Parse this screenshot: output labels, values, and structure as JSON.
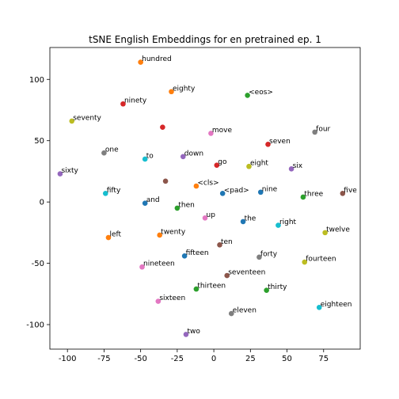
{
  "chart_data": {
    "type": "scatter",
    "title": "tSNE English Embeddings for en pretrained ep. 1",
    "xlabel": "",
    "ylabel": "",
    "xlim": [
      -112,
      100
    ],
    "ylim": [
      -120,
      126
    ],
    "xticks": [
      -100,
      -75,
      -50,
      -25,
      0,
      25,
      50,
      75
    ],
    "yticks": [
      -100,
      -50,
      0,
      50,
      100
    ],
    "grid": false,
    "points": [
      {
        "x": -50,
        "y": 114,
        "label": "hundred",
        "color": "#ff7f0e"
      },
      {
        "x": -29,
        "y": 90,
        "label": "eighty",
        "color": "#ff7f0e"
      },
      {
        "x": -62,
        "y": 80,
        "label": "ninety",
        "color": "#d62728"
      },
      {
        "x": 23,
        "y": 87,
        "label": "<eos>",
        "color": "#2ca02c"
      },
      {
        "x": -97,
        "y": 66,
        "label": "seventy",
        "color": "#bcbd22"
      },
      {
        "x": -35,
        "y": 61,
        "label": "",
        "color": "#d62728"
      },
      {
        "x": -2,
        "y": 56,
        "label": "move",
        "color": "#e377c2"
      },
      {
        "x": 69,
        "y": 57,
        "label": "four",
        "color": "#7f7f7f"
      },
      {
        "x": 37,
        "y": 47,
        "label": "seven",
        "color": "#d62728"
      },
      {
        "x": -75,
        "y": 40,
        "label": "one",
        "color": "#7f7f7f"
      },
      {
        "x": -47,
        "y": 35,
        "label": "to",
        "color": "#17becf"
      },
      {
        "x": -21,
        "y": 37,
        "label": "down",
        "color": "#9467bd"
      },
      {
        "x": 2,
        "y": 30,
        "label": "go",
        "color": "#d62728"
      },
      {
        "x": 24,
        "y": 29,
        "label": "eight",
        "color": "#bcbd22"
      },
      {
        "x": 53,
        "y": 27,
        "label": "six",
        "color": "#9467bd"
      },
      {
        "x": -105,
        "y": 23,
        "label": "sixty",
        "color": "#9467bd"
      },
      {
        "x": -33,
        "y": 17,
        "label": "",
        "color": "#8c564b"
      },
      {
        "x": -12,
        "y": 13,
        "label": "<cls>",
        "color": "#ff7f0e"
      },
      {
        "x": -74,
        "y": 7,
        "label": "fifty",
        "color": "#17becf"
      },
      {
        "x": 6,
        "y": 7,
        "label": "<pad>",
        "color": "#1f77b4"
      },
      {
        "x": 32,
        "y": 8,
        "label": "nine",
        "color": "#1f77b4"
      },
      {
        "x": 61,
        "y": 4,
        "label": "three",
        "color": "#2ca02c"
      },
      {
        "x": 88,
        "y": 7,
        "label": "five",
        "color": "#8c564b"
      },
      {
        "x": -47,
        "y": -1,
        "label": "and",
        "color": "#1f77b4"
      },
      {
        "x": -25,
        "y": -5,
        "label": "then",
        "color": "#2ca02c"
      },
      {
        "x": -6,
        "y": -13,
        "label": "up",
        "color": "#e377c2"
      },
      {
        "x": 20,
        "y": -16,
        "label": "the",
        "color": "#1f77b4"
      },
      {
        "x": 44,
        "y": -19,
        "label": "right",
        "color": "#17becf"
      },
      {
        "x": 76,
        "y": -25,
        "label": "twelve",
        "color": "#bcbd22"
      },
      {
        "x": -72,
        "y": -29,
        "label": "left",
        "color": "#ff7f0e"
      },
      {
        "x": -37,
        "y": -27,
        "label": "twenty",
        "color": "#ff7f0e"
      },
      {
        "x": 4,
        "y": -35,
        "label": "ten",
        "color": "#8c564b"
      },
      {
        "x": -20,
        "y": -44,
        "label": "fifteen",
        "color": "#1f77b4"
      },
      {
        "x": 31,
        "y": -45,
        "label": "forty",
        "color": "#7f7f7f"
      },
      {
        "x": 62,
        "y": -49,
        "label": "fourteen",
        "color": "#bcbd22"
      },
      {
        "x": -49,
        "y": -53,
        "label": "nineteen",
        "color": "#e377c2"
      },
      {
        "x": 9,
        "y": -60,
        "label": "seventeen",
        "color": "#8c564b"
      },
      {
        "x": -12,
        "y": -71,
        "label": "thirteen",
        "color": "#2ca02c"
      },
      {
        "x": 36,
        "y": -72,
        "label": "thirty",
        "color": "#2ca02c"
      },
      {
        "x": -38,
        "y": -81,
        "label": "sixteen",
        "color": "#e377c2"
      },
      {
        "x": 72,
        "y": -86,
        "label": "eighteen",
        "color": "#17becf"
      },
      {
        "x": 12,
        "y": -91,
        "label": "eleven",
        "color": "#7f7f7f"
      },
      {
        "x": -19,
        "y": -108,
        "label": "two",
        "color": "#9467bd"
      }
    ]
  }
}
